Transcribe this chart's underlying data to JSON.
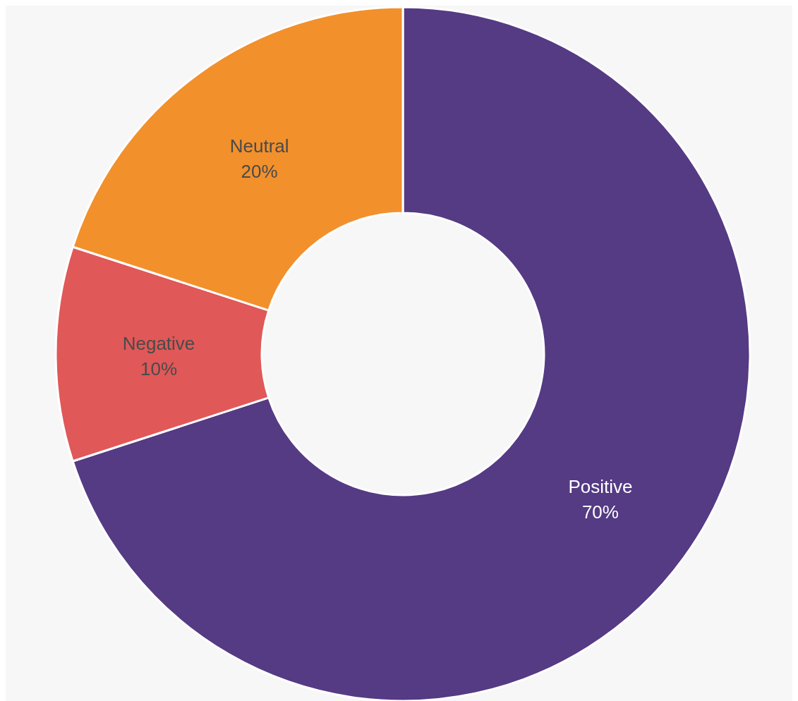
{
  "chart_data": {
    "type": "donut",
    "categories": [
      "Positive",
      "Negative",
      "Neutral"
    ],
    "values": [
      70,
      10,
      20
    ],
    "colors": [
      "#553a84",
      "#e05858",
      "#f2902c"
    ],
    "value_labels": [
      "70%",
      "10%",
      "20%"
    ]
  }
}
